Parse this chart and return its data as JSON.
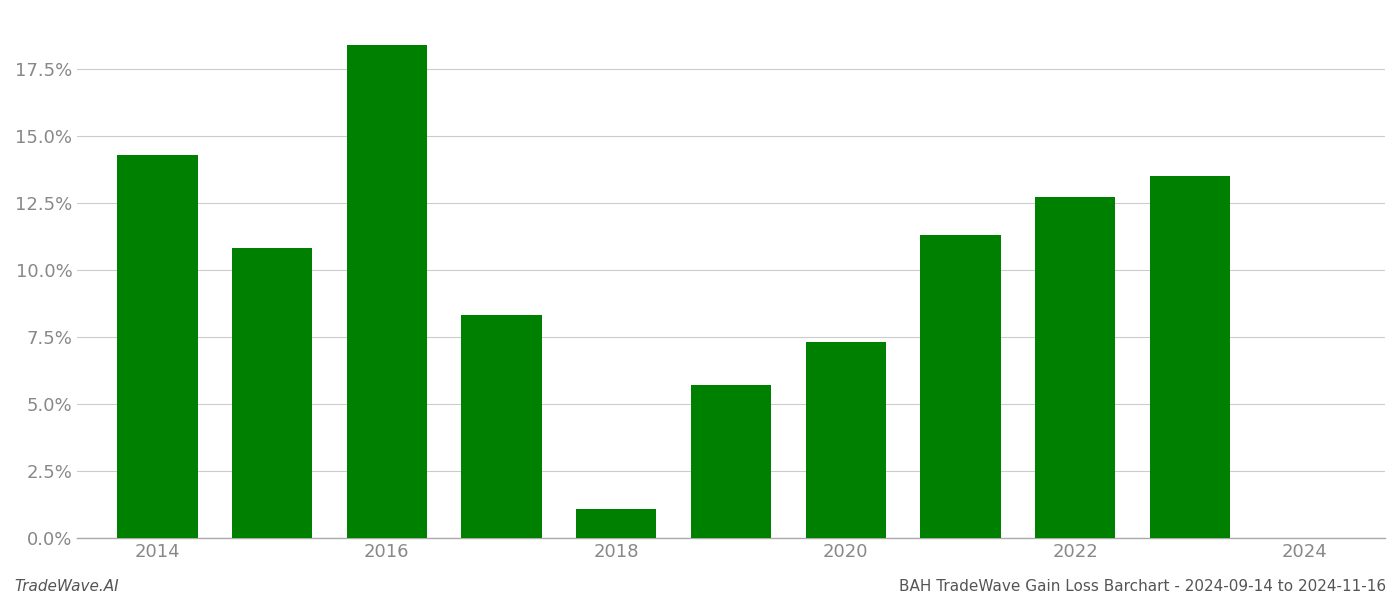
{
  "years": [
    2014,
    2015,
    2016,
    2017,
    2018,
    2019,
    2020,
    2021,
    2022,
    2023
  ],
  "values": [
    0.143,
    0.108,
    0.184,
    0.083,
    0.011,
    0.057,
    0.073,
    0.113,
    0.127,
    0.135
  ],
  "bar_color": "#008000",
  "background_color": "#ffffff",
  "grid_color": "#cccccc",
  "axis_color": "#aaaaaa",
  "tick_color": "#888888",
  "ylim": [
    0,
    0.195
  ],
  "yticks": [
    0.0,
    0.025,
    0.05,
    0.075,
    0.1,
    0.125,
    0.15,
    0.175
  ],
  "xlim": [
    2013.3,
    2024.7
  ],
  "xticks": [
    2014,
    2016,
    2018,
    2020,
    2022,
    2024
  ],
  "footer_left": "TradeWave.AI",
  "footer_right": "BAH TradeWave Gain Loss Barchart - 2024-09-14 to 2024-11-16",
  "footer_fontsize": 11,
  "tick_fontsize": 13,
  "bar_width": 0.7
}
